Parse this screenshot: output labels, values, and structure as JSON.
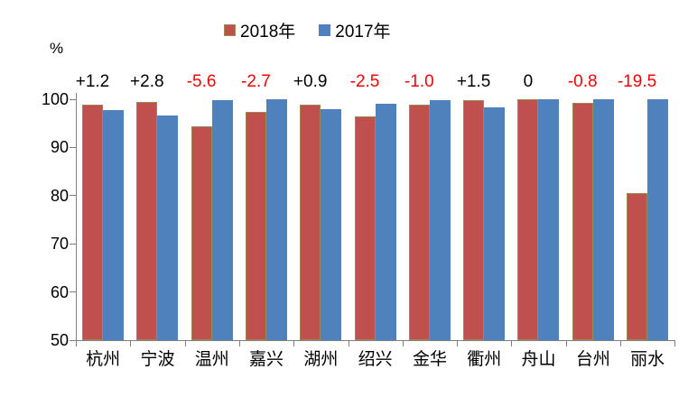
{
  "chart_data": {
    "type": "bar",
    "title": "",
    "unit_label": "%",
    "categories": [
      "杭州",
      "宁波",
      "温州",
      "嘉兴",
      "湖州",
      "绍兴",
      "金华",
      "衢州",
      "舟山",
      "台州",
      "丽水"
    ],
    "series": [
      {
        "name": "2018年",
        "color": "#C0504D",
        "border_color": "#9C8A54",
        "values": [
          98.9,
          99.4,
          94.3,
          97.3,
          98.8,
          96.5,
          98.9,
          99.9,
          100,
          99.2,
          80.5
        ]
      },
      {
        "name": "2017年",
        "color": "#4F81BD",
        "border_color": null,
        "values": [
          97.7,
          96.6,
          99.9,
          100,
          97.9,
          99.0,
          99.9,
          98.4,
          100,
          100,
          100
        ]
      }
    ],
    "diff_labels": [
      {
        "text": "+1.2",
        "color": "#000000"
      },
      {
        "text": "+2.8",
        "color": "#000000"
      },
      {
        "text": "-5.6",
        "color": "#FF0000"
      },
      {
        "text": "-2.7",
        "color": "#FF0000"
      },
      {
        "text": "+0.9",
        "color": "#000000"
      },
      {
        "text": "-2.5",
        "color": "#FF0000"
      },
      {
        "text": "-1.0",
        "color": "#FF0000"
      },
      {
        "text": "+1.5",
        "color": "#000000"
      },
      {
        "text": "0",
        "color": "#000000"
      },
      {
        "text": "-0.8",
        "color": "#FF0000"
      },
      {
        "text": "-19.5",
        "color": "#FF0000"
      }
    ],
    "ylim": [
      50,
      100
    ],
    "yticks": [
      100,
      90,
      80,
      70,
      60,
      50
    ],
    "legend_position": "top-center",
    "grid": false
  }
}
